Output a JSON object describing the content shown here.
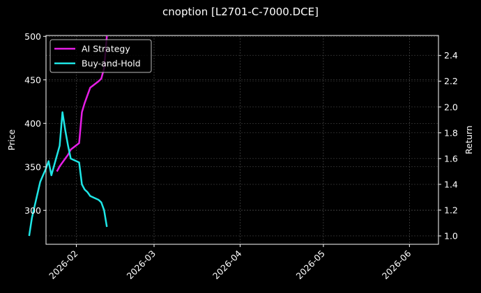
{
  "chart_data": {
    "type": "line",
    "title": "cnoption [L2701-C-7000.DCE]",
    "xlabel": "",
    "ylabel": "Price",
    "y2label": "Return",
    "ylim": [
      261,
      501
    ],
    "y2lim": [
      0.935,
      2.555
    ],
    "x_ticks": [
      "2026-02",
      "2026-03",
      "2026-04",
      "2026-05",
      "2026-06"
    ],
    "y_ticks": [
      300,
      350,
      400,
      450,
      500
    ],
    "y2_ticks": [
      1.0,
      1.2,
      1.4,
      1.6,
      1.8,
      2.0,
      2.2,
      2.4
    ],
    "grid": true,
    "legend_position": "upper left",
    "series": [
      {
        "name": "AI Strategy",
        "axis": "right",
        "color": "#e61ee6",
        "x": [
          "2026-01-25",
          "2026-01-26",
          "2026-01-27",
          "2026-01-28",
          "2026-01-29",
          "2026-01-30",
          "2026-02-02",
          "2026-02-03",
          "2026-02-04",
          "2026-02-05",
          "2026-02-06",
          "2026-02-09",
          "2026-02-10",
          "2026-02-11",
          "2026-02-12"
        ],
        "values": [
          1.5,
          1.54,
          1.57,
          1.6,
          1.63,
          1.67,
          1.72,
          1.96,
          2.03,
          2.09,
          2.15,
          2.2,
          2.22,
          2.3,
          2.55
        ]
      },
      {
        "name": "Buy-and-Hold",
        "axis": "right",
        "color": "#1ee6e6",
        "x": [
          "2026-01-15",
          "2026-01-16",
          "2026-01-19",
          "2026-01-20",
          "2026-01-21",
          "2026-01-22",
          "2026-01-23",
          "2026-01-26",
          "2026-01-27",
          "2026-01-28",
          "2026-01-29",
          "2026-01-30",
          "2026-02-02",
          "2026-02-03",
          "2026-02-04",
          "2026-02-05",
          "2026-02-06",
          "2026-02-09",
          "2026-02-10",
          "2026-02-11",
          "2026-02-12"
        ],
        "values": [
          1.0,
          1.14,
          1.42,
          1.47,
          1.52,
          1.58,
          1.47,
          1.7,
          1.96,
          1.82,
          1.7,
          1.6,
          1.57,
          1.4,
          1.36,
          1.34,
          1.31,
          1.28,
          1.26,
          1.2,
          1.07
        ]
      }
    ]
  }
}
